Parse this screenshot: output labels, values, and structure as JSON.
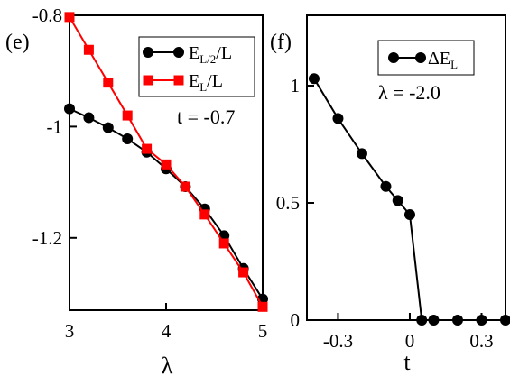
{
  "chart_data": [
    {
      "type": "line",
      "panel_tag": "(e)",
      "xlabel": "λ",
      "ylabel": "",
      "xlim": [
        3,
        5
      ],
      "ylim": [
        -1.33,
        -0.8
      ],
      "x_ticks": [
        3,
        4,
        5
      ],
      "y_ticks": [
        -0.8,
        -1,
        -1.2
      ],
      "annotation": "t = -0.7",
      "legend_position": "top-right",
      "series": [
        {
          "legend_main": "E",
          "legend_sub": "L/2",
          "legend_tail": "/L",
          "color": "#000000",
          "marker": "circle",
          "x": [
            3.0,
            3.2,
            3.4,
            3.6,
            3.8,
            4.0,
            4.2,
            4.4,
            4.6,
            4.8,
            5.0
          ],
          "y": [
            -0.968,
            -0.984,
            -1.002,
            -1.022,
            -1.046,
            -1.076,
            -1.108,
            -1.148,
            -1.196,
            -1.255,
            -1.31
          ]
        },
        {
          "legend_main": "E",
          "legend_sub": "L",
          "legend_tail": "/L",
          "color": "#ff0000",
          "marker": "square",
          "x": [
            3.0,
            3.2,
            3.4,
            3.6,
            3.8,
            4.0,
            4.2,
            4.4,
            4.6,
            4.8,
            5.0
          ],
          "y": [
            -0.803,
            -0.862,
            -0.921,
            -0.98,
            -1.04,
            -1.068,
            -1.108,
            -1.158,
            -1.21,
            -1.262,
            -1.324
          ]
        }
      ]
    },
    {
      "type": "line",
      "panel_tag": "(f)",
      "xlabel": "t",
      "ylabel": "",
      "xlim": [
        -0.43,
        0.4
      ],
      "ylim": [
        0,
        1.3
      ],
      "x_ticks": [
        -0.3,
        0,
        0.3
      ],
      "x_tick_labels": [
        "-0.3",
        "0",
        "0.3"
      ],
      "y_ticks": [
        0,
        0.5,
        1
      ],
      "y_tick_labels": [
        "0",
        "0.5",
        "1"
      ],
      "annotation": "λ = -2.0",
      "legend_position": "top-right",
      "series": [
        {
          "legend_main": "ΔE",
          "legend_sub": "L",
          "legend_tail": "",
          "color": "#000000",
          "marker": "circle",
          "x": [
            -0.4,
            -0.3,
            -0.2,
            -0.1,
            -0.05,
            0.0,
            0.05,
            0.1,
            0.2,
            0.3,
            0.4
          ],
          "y": [
            1.03,
            0.86,
            0.71,
            0.57,
            0.51,
            0.45,
            0.0,
            0.0,
            0.0,
            0.0,
            0.0
          ]
        }
      ]
    }
  ]
}
